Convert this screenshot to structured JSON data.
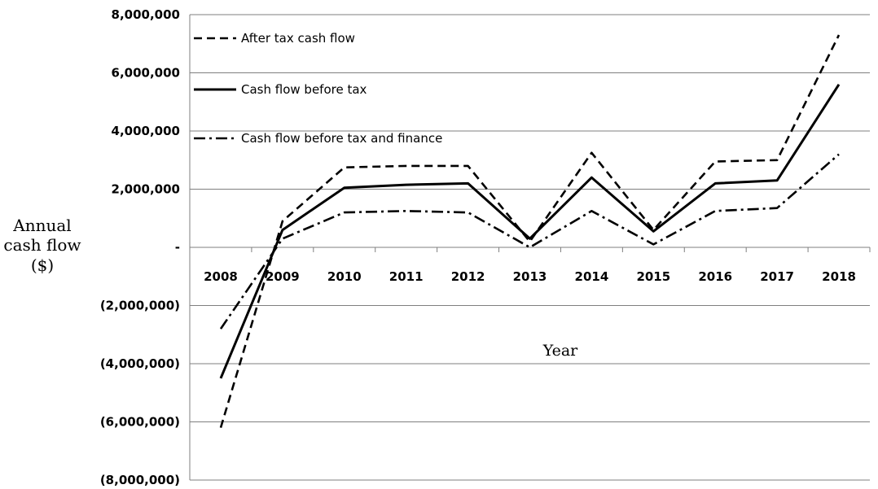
{
  "chart_data": {
    "type": "line",
    "x": [
      "2008",
      "2009",
      "2010",
      "2011",
      "2012",
      "2013",
      "2014",
      "2015",
      "2016",
      "2017",
      "2018"
    ],
    "series": [
      {
        "name": "After tax cash flow",
        "style": "dashed",
        "color": "#000000",
        "values": [
          -6200000,
          900000,
          2750000,
          2800000,
          2800000,
          200000,
          3250000,
          600000,
          2950000,
          3000000,
          7300000
        ]
      },
      {
        "name": "Cash flow before tax",
        "style": "solid",
        "color": "#000000",
        "values": [
          -4500000,
          600000,
          2050000,
          2150000,
          2200000,
          300000,
          2400000,
          550000,
          2200000,
          2300000,
          5600000
        ]
      },
      {
        "name": "Cash flow before tax and finance",
        "style": "dash-dot",
        "color": "#000000",
        "values": [
          -2800000,
          300000,
          1200000,
          1250000,
          1200000,
          0,
          1250000,
          100000,
          1250000,
          1350000,
          3200000
        ]
      }
    ],
    "ylabel_lines": [
      "Annual",
      "cash flow",
      "($)"
    ],
    "xlabel": "Year",
    "ylim": [
      -8000000,
      8000000
    ],
    "yticks": [
      8000000,
      6000000,
      4000000,
      2000000,
      0,
      -2000000,
      -4000000,
      -6000000,
      -8000000
    ],
    "ytick_labels": [
      "8,000,000",
      "6,000,000",
      "4,000,000",
      "2,000,000",
      "-",
      "(2,000,000)",
      "(4,000,000)",
      "(6,000,000)",
      "(8,000,000)"
    ],
    "grid": true,
    "legend_position": "top-left"
  }
}
